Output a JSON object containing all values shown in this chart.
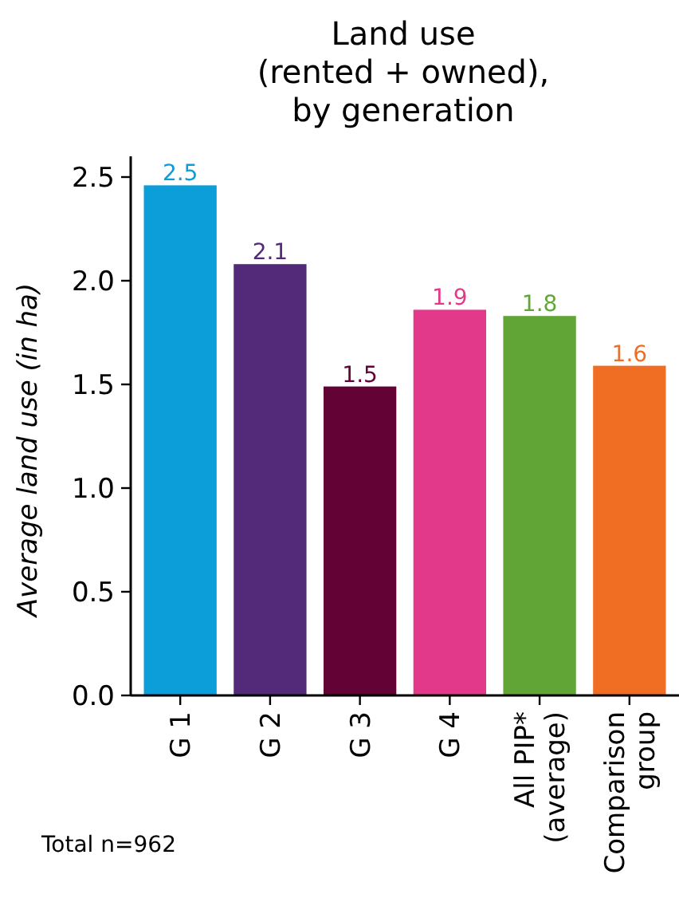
{
  "chart_data": {
    "type": "bar",
    "title": "Land use\n(rented + owned),\nby generation",
    "ylabel": "Average land use (in ha)",
    "categories": [
      "G 1",
      "G 2",
      "G 3",
      "G 4",
      "All PIP*\n(average)",
      "Comparison\ngroup"
    ],
    "values": [
      2.46,
      2.08,
      1.49,
      1.86,
      1.83,
      1.59
    ],
    "value_labels": [
      "2.5",
      "2.1",
      "1.5",
      "1.9",
      "1.8",
      "1.6"
    ],
    "colors": [
      "#0b9ed9",
      "#53297a",
      "#630234",
      "#e2398a",
      "#62a537",
      "#f06e24"
    ],
    "ylim": [
      0,
      2.6
    ],
    "yticks": [
      {
        "value": 0,
        "label": "0.0"
      },
      {
        "value": 0.5,
        "label": "0.5"
      },
      {
        "value": 1,
        "label": "1.0"
      },
      {
        "value": 1.5,
        "label": "1.5"
      },
      {
        "value": 2,
        "label": "2.0"
      },
      {
        "value": 2.5,
        "label": "2.5"
      }
    ],
    "grid": false,
    "annotations": [
      "Total n=962"
    ]
  }
}
